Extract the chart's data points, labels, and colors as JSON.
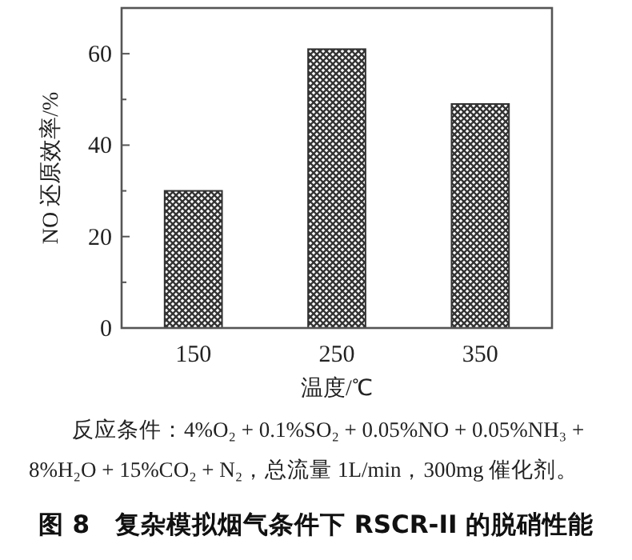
{
  "chart_data": {
    "type": "bar",
    "title": "图 8　复杂模拟烟气条件下 RSCR-II 的脱硝性能",
    "annotations": [
      "反应条件：4%O₂ + 0.1%SO₂ + 0.05%NO + 0.05%NH₃ + 8%H₂O + 15%CO₂ + N₂，总流量 1L/min，300mg 催化剂。"
    ],
    "xlabel": "温度/℃",
    "ylabel": "NO 还原效率/%",
    "categories": [
      "150",
      "250",
      "350"
    ],
    "values": [
      30,
      61,
      49
    ],
    "color": "#333333",
    "ylim": [
      0,
      70
    ],
    "yticks": [
      0,
      {
        "value": 10,
        "label": null
      },
      20,
      {
        "value": 30,
        "label": null
      },
      40,
      {
        "value": 50,
        "label": null
      },
      60,
      {
        "value": 70,
        "label": null
      }
    ],
    "grid": false
  }
}
